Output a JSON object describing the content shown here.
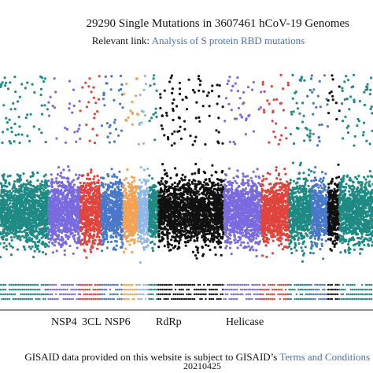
{
  "header": {
    "title": "29290 Single Mutations in 3607461 hCoV-19 Genomes",
    "relevant_prefix": "Relevant link:",
    "relevant_link": "Analysis of S protein RBD mutations"
  },
  "footer": {
    "text": "GISAID data provided on this website is subject to GISAID’s",
    "link": "Terms and Conditions"
  },
  "date": "20210425",
  "chart_data": {
    "type": "scatter",
    "title": "29290 Single Mutations in 3607461 hCoV-19 Genomes",
    "xlabel": "",
    "ylabel": "",
    "gene_labels": [
      "NSP4",
      "3CL",
      "NSP6",
      "RdRp",
      "Helicase"
    ],
    "segments": [
      {
        "color": "#1f8a84",
        "start": 0.0,
        "end": 0.13
      },
      {
        "color": "#7a6ae0",
        "start": 0.13,
        "end": 0.215
      },
      {
        "color": "#e0443c",
        "start": 0.215,
        "end": 0.27
      },
      {
        "color": "#4a78c8",
        "start": 0.27,
        "end": 0.33
      },
      {
        "color": "#f4a252",
        "start": 0.33,
        "end": 0.37
      },
      {
        "color": "#8fb8e8",
        "start": 0.37,
        "end": 0.4
      },
      {
        "color": "#1f8a84",
        "start": 0.4,
        "end": 0.425
      },
      {
        "color": "#111111",
        "start": 0.425,
        "end": 0.6
      },
      {
        "color": "#7a6ae0",
        "start": 0.6,
        "end": 0.7
      },
      {
        "color": "#e0443c",
        "start": 0.7,
        "end": 0.775
      },
      {
        "color": "#1f8a84",
        "start": 0.775,
        "end": 0.835
      },
      {
        "color": "#4a78c8",
        "start": 0.835,
        "end": 0.88
      },
      {
        "color": "#111111",
        "start": 0.88,
        "end": 0.91
      },
      {
        "color": "#1f8a84",
        "start": 0.91,
        "end": 1.0
      }
    ],
    "grid": false,
    "legend": "none"
  }
}
